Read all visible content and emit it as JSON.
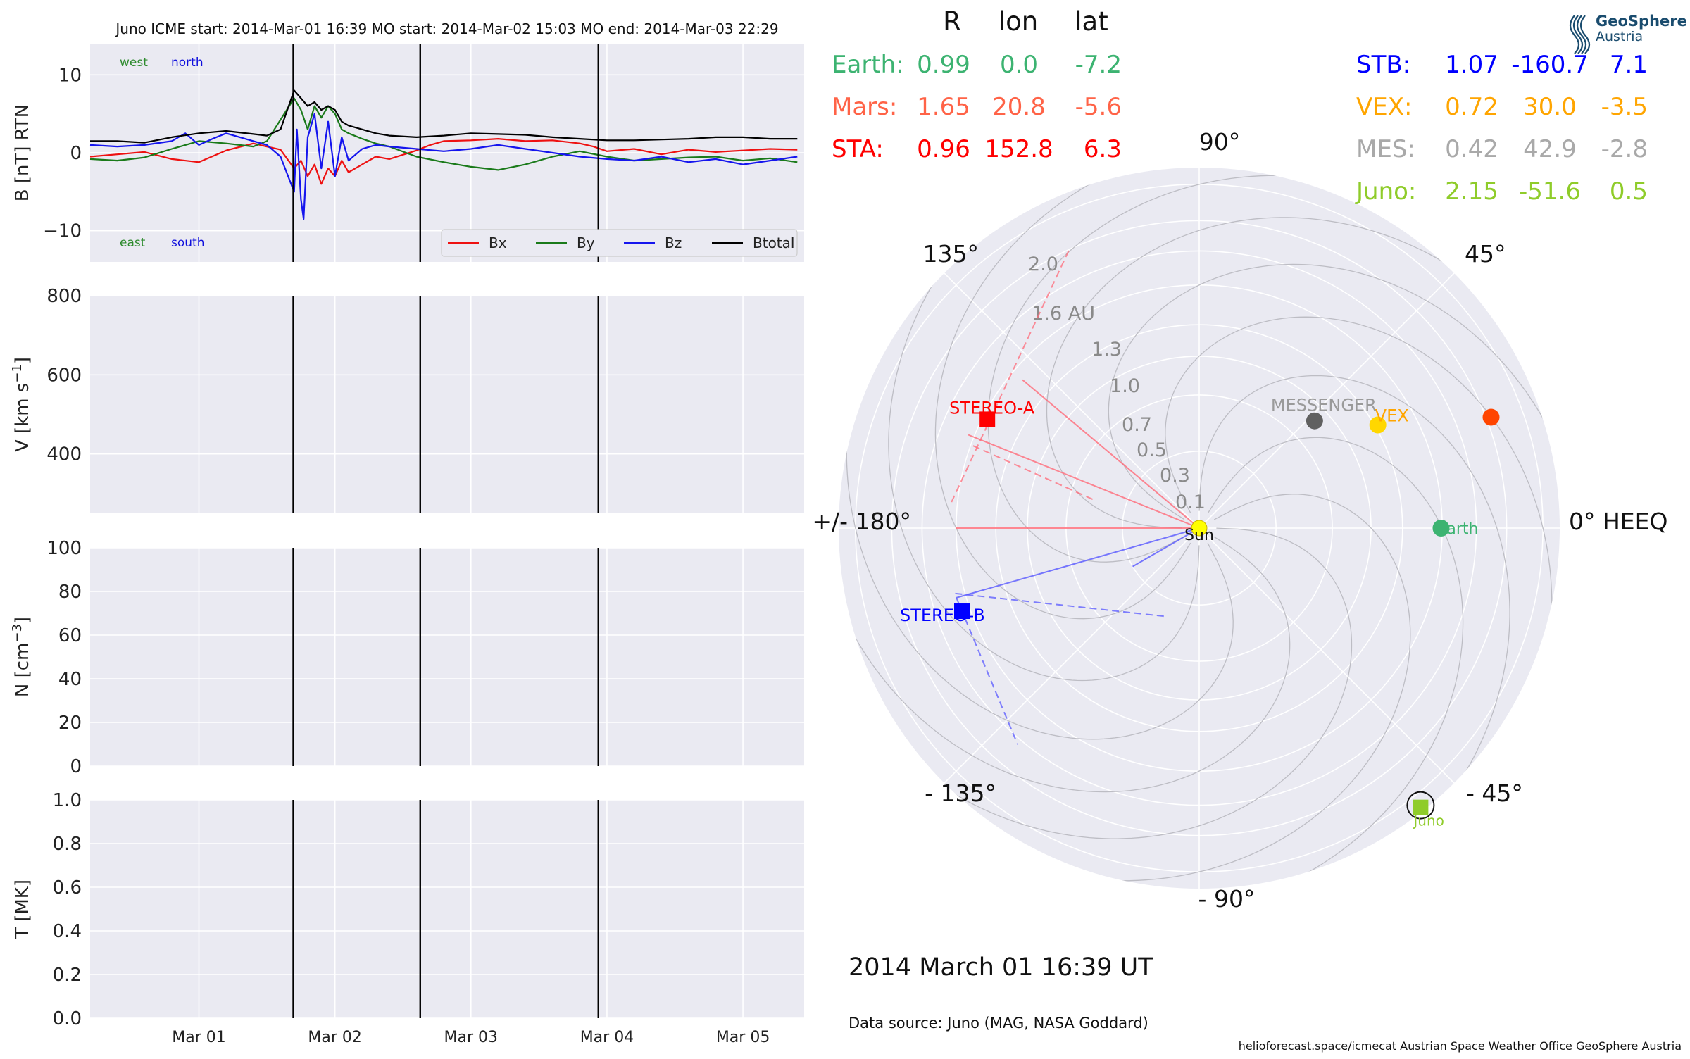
{
  "chart_data": [
    {
      "type": "line",
      "title": "Juno    ICME start: 2014-Mar-01 16:39   MO start: 2014-Mar-02 15:03   MO end: 2014-Mar-03 22:29",
      "ylabel": "B [nT] RTN",
      "ylim": [
        -14,
        14
      ],
      "yticks": [
        10,
        0,
        -10
      ],
      "ytick_labels": [
        "10",
        "0",
        "−10"
      ],
      "x_dates": [
        "2014-02-28T00:00",
        "2014-03-05T12:00"
      ],
      "vlines": [
        "2014-03-01T16:39",
        "2014-03-02T15:03",
        "2014-03-03T22:29"
      ],
      "annotations": [
        {
          "text": "west",
          "color": "#2e8b2e"
        },
        {
          "text": "north",
          "color": "#1010dd"
        },
        {
          "text": "east",
          "color": "#2e8b2e"
        },
        {
          "text": "south",
          "color": "#1010dd"
        }
      ],
      "legend": "lower-right",
      "series": [
        {
          "name": "Bx",
          "color": "#ee1111",
          "values": [
            [
              0.2,
              -0.5
            ],
            [
              0.4,
              -0.2
            ],
            [
              0.6,
              0.1
            ],
            [
              0.8,
              -0.8
            ],
            [
              1.0,
              -1.2
            ],
            [
              1.2,
              0.3
            ],
            [
              1.4,
              1.2
            ],
            [
              1.6,
              0.4
            ],
            [
              1.7,
              -2.0
            ],
            [
              1.75,
              -1.0
            ],
            [
              1.8,
              -3.0
            ],
            [
              1.85,
              -1.5
            ],
            [
              1.9,
              -4.0
            ],
            [
              1.95,
              -2.0
            ],
            [
              2.0,
              -3.0
            ],
            [
              2.05,
              -1.0
            ],
            [
              2.1,
              -2.5
            ],
            [
              2.2,
              -1.5
            ],
            [
              2.3,
              -0.5
            ],
            [
              2.4,
              -0.8
            ],
            [
              2.6,
              0.3
            ],
            [
              2.7,
              1.0
            ],
            [
              2.8,
              1.5
            ],
            [
              3.0,
              1.6
            ],
            [
              3.2,
              1.8
            ],
            [
              3.4,
              1.5
            ],
            [
              3.6,
              1.6
            ],
            [
              3.8,
              1.2
            ],
            [
              3.9,
              0.8
            ],
            [
              4.0,
              0.2
            ],
            [
              4.2,
              0.5
            ],
            [
              4.4,
              -0.2
            ],
            [
              4.6,
              0.4
            ],
            [
              4.8,
              0.1
            ],
            [
              5.0,
              0.3
            ],
            [
              5.2,
              0.5
            ],
            [
              5.4,
              0.4
            ]
          ]
        },
        {
          "name": "By",
          "color": "#1a7a1a",
          "values": [
            [
              0.2,
              -0.8
            ],
            [
              0.4,
              -1.0
            ],
            [
              0.6,
              -0.6
            ],
            [
              0.8,
              0.5
            ],
            [
              1.0,
              1.5
            ],
            [
              1.2,
              1.2
            ],
            [
              1.4,
              0.8
            ],
            [
              1.5,
              1.5
            ],
            [
              1.7,
              7.0
            ],
            [
              1.75,
              5.5
            ],
            [
              1.8,
              3.0
            ],
            [
              1.85,
              6.0
            ],
            [
              1.9,
              4.5
            ],
            [
              1.95,
              6.0
            ],
            [
              2.0,
              5.0
            ],
            [
              2.05,
              3.0
            ],
            [
              2.1,
              2.5
            ],
            [
              2.2,
              1.8
            ],
            [
              2.3,
              1.2
            ],
            [
              2.4,
              0.8
            ],
            [
              2.6,
              -0.5
            ],
            [
              2.8,
              -1.2
            ],
            [
              3.0,
              -1.8
            ],
            [
              3.2,
              -2.2
            ],
            [
              3.4,
              -1.5
            ],
            [
              3.6,
              -0.5
            ],
            [
              3.8,
              0.2
            ],
            [
              4.0,
              -0.5
            ],
            [
              4.2,
              -1.0
            ],
            [
              4.4,
              -0.8
            ],
            [
              4.6,
              -0.6
            ],
            [
              4.8,
              -0.5
            ],
            [
              5.0,
              -1.0
            ],
            [
              5.2,
              -0.7
            ],
            [
              5.4,
              -1.2
            ]
          ]
        },
        {
          "name": "Bz",
          "color": "#1515ee",
          "values": [
            [
              0.2,
              1.0
            ],
            [
              0.4,
              0.8
            ],
            [
              0.6,
              1.0
            ],
            [
              0.8,
              1.5
            ],
            [
              0.9,
              2.5
            ],
            [
              1.0,
              1.0
            ],
            [
              1.1,
              1.8
            ],
            [
              1.2,
              2.5
            ],
            [
              1.4,
              1.5
            ],
            [
              1.5,
              1.0
            ],
            [
              1.6,
              -0.5
            ],
            [
              1.7,
              -5.0
            ],
            [
              1.72,
              3.0
            ],
            [
              1.75,
              -6.0
            ],
            [
              1.77,
              -8.5
            ],
            [
              1.8,
              2.0
            ],
            [
              1.85,
              5.0
            ],
            [
              1.9,
              -2.0
            ],
            [
              1.95,
              4.0
            ],
            [
              2.0,
              -3.0
            ],
            [
              2.05,
              2.0
            ],
            [
              2.1,
              -1.0
            ],
            [
              2.2,
              0.5
            ],
            [
              2.3,
              1.0
            ],
            [
              2.4,
              0.8
            ],
            [
              2.6,
              0.5
            ],
            [
              2.8,
              0.2
            ],
            [
              3.0,
              0.5
            ],
            [
              3.2,
              1.0
            ],
            [
              3.4,
              0.5
            ],
            [
              3.6,
              0.0
            ],
            [
              3.8,
              -0.5
            ],
            [
              4.0,
              -0.8
            ],
            [
              4.2,
              -1.0
            ],
            [
              4.4,
              -0.5
            ],
            [
              4.6,
              -1.2
            ],
            [
              4.8,
              -0.8
            ],
            [
              5.0,
              -1.5
            ],
            [
              5.2,
              -1.0
            ],
            [
              5.4,
              -0.5
            ]
          ]
        },
        {
          "name": "Btotal",
          "color": "#000000",
          "values": [
            [
              0.2,
              1.5
            ],
            [
              0.4,
              1.5
            ],
            [
              0.6,
              1.3
            ],
            [
              0.8,
              2.0
            ],
            [
              1.0,
              2.5
            ],
            [
              1.2,
              2.8
            ],
            [
              1.4,
              2.4
            ],
            [
              1.5,
              2.2
            ],
            [
              1.6,
              3.0
            ],
            [
              1.7,
              8.0
            ],
            [
              1.75,
              7.0
            ],
            [
              1.8,
              6.0
            ],
            [
              1.85,
              6.5
            ],
            [
              1.9,
              5.5
            ],
            [
              1.95,
              6.0
            ],
            [
              2.0,
              5.5
            ],
            [
              2.05,
              4.0
            ],
            [
              2.1,
              3.5
            ],
            [
              2.2,
              3.0
            ],
            [
              2.3,
              2.5
            ],
            [
              2.4,
              2.2
            ],
            [
              2.6,
              2.0
            ],
            [
              2.8,
              2.2
            ],
            [
              3.0,
              2.5
            ],
            [
              3.2,
              2.4
            ],
            [
              3.4,
              2.3
            ],
            [
              3.6,
              2.0
            ],
            [
              3.8,
              1.8
            ],
            [
              4.0,
              1.6
            ],
            [
              4.2,
              1.6
            ],
            [
              4.4,
              1.7
            ],
            [
              4.6,
              1.8
            ],
            [
              4.8,
              2.0
            ],
            [
              5.0,
              2.0
            ],
            [
              5.2,
              1.8
            ],
            [
              5.4,
              1.8
            ]
          ]
        }
      ]
    },
    {
      "type": "line",
      "ylabel": "V [km s",
      "ylabel_sup": "−1",
      "ylabel_end": "]",
      "ylim": [
        250,
        800
      ],
      "yticks": [
        800,
        600,
        400
      ],
      "ytick_labels": [
        "800",
        "600",
        "400"
      ],
      "series": []
    },
    {
      "type": "line",
      "ylabel": "N [cm",
      "ylabel_sup": "−3",
      "ylabel_end": "]",
      "ylim": [
        0,
        100
      ],
      "yticks": [
        100,
        80,
        60,
        40,
        20,
        0
      ],
      "ytick_labels": [
        "100",
        "80",
        "60",
        "40",
        "20",
        "0"
      ],
      "series": []
    },
    {
      "type": "line",
      "ylabel": "T [MK]",
      "ylim": [
        0,
        1
      ],
      "yticks": [
        1.0,
        0.8,
        0.6,
        0.4,
        0.2,
        0.0
      ],
      "ytick_labels": [
        "1.0",
        "0.8",
        "0.6",
        "0.4",
        "0.2",
        "0.0"
      ],
      "xticks": [
        1.0,
        2.0,
        3.0,
        4.0,
        5.0
      ],
      "xtick_labels": [
        "Mar 01",
        "Mar 02",
        "Mar 03",
        "Mar 04",
        "Mar 05"
      ],
      "series": []
    },
    {
      "type": "scatter",
      "projection": "polar",
      "rlabels": [
        "0.1",
        "0.3",
        "0.5",
        "0.7",
        "1.0",
        "1.3",
        "1.6 AU",
        "2.0"
      ],
      "angle_labels": [
        "0° HEEQ",
        "45°",
        "90°",
        "135°",
        "+/- 180°",
        "- 135°",
        "- 90°",
        "- 45°"
      ],
      "bodies": [
        {
          "name": "Sun",
          "r": 0.0,
          "lon": 0.0,
          "color": "#ffff00",
          "marker": "circle"
        },
        {
          "name": "Earth",
          "r": 0.99,
          "lon": 0.0,
          "color": "#3cb371",
          "marker": "circle"
        },
        {
          "name": "",
          "r": 1.65,
          "lon": 20.8,
          "color": "#ff4500",
          "marker": "circle"
        },
        {
          "name": "VEX",
          "r": 0.72,
          "lon": 30.0,
          "color": "#ffd700",
          "marker": "circle"
        },
        {
          "name": "MESSENGER",
          "r": 0.42,
          "lon": 42.9,
          "color": "#606060",
          "marker": "circle"
        },
        {
          "name": "STEREO-A",
          "r": 0.96,
          "lon": 152.8,
          "color": "#ff0000",
          "marker": "square"
        },
        {
          "name": "STEREO-B",
          "r": 1.07,
          "lon": -160.7,
          "color": "#0000ff",
          "marker": "square"
        },
        {
          "name": "Juno",
          "r": 2.15,
          "lon": -51.6,
          "color": "#8fcc2a",
          "marker": "square"
        }
      ],
      "icme_fronts": [
        {
          "color": "#ff6a78",
          "lines": [
            [
              [
                0,
                0
              ],
              [
                180,
                1.0
              ]
            ],
            [
              [
                0,
                0
              ],
              [
                158,
                1.05
              ]
            ],
            [
              [
                0,
                0
              ],
              [
                140,
                0.9
              ]
            ]
          ],
          "dashed": [
            [
              [
                174,
                1.05
              ],
              [
                115,
                1.6
              ]
            ],
            [
              [
                160,
                0.98
              ],
              [
                165,
                0.2
              ]
            ]
          ]
        },
        {
          "color": "#5858ff",
          "lines": [
            [
              [
                0,
                0
              ],
              [
                -164,
                1.08
              ]
            ],
            [
              [
                0,
                0
              ],
              [
                -150,
                0.1
              ]
            ]
          ],
          "dashed": [
            [
              [
                -164,
                1.08
              ],
              [
                -130,
                1.35
              ]
            ],
            [
              [
                -165,
                1.08
              ],
              [
                -110,
                0.15
              ]
            ]
          ]
        }
      ]
    }
  ],
  "positions_table": {
    "header": [
      "R",
      "lon",
      "lat"
    ],
    "left": [
      {
        "label": "Earth:",
        "r": "0.99",
        "lon": "0.0",
        "lat": "-7.2",
        "color": "#3cb371"
      },
      {
        "label": "Mars:",
        "r": "1.65",
        "lon": "20.8",
        "lat": "-5.6",
        "color": "#ff6347"
      },
      {
        "label": "STA:",
        "r": "0.96",
        "lon": "152.8",
        "lat": "6.3",
        "color": "#ff0000"
      }
    ],
    "right": [
      {
        "label": "STB:",
        "r": "1.07",
        "lon": "-160.7",
        "lat": "7.1",
        "color": "#0000ff"
      },
      {
        "label": "VEX:",
        "r": "0.72",
        "lon": "30.0",
        "lat": "-3.5",
        "color": "#ffa500"
      },
      {
        "label": "MES:",
        "r": "0.42",
        "lon": "42.9",
        "lat": "-2.8",
        "color": "#a9a9a9"
      },
      {
        "label": "Juno:",
        "r": "2.15",
        "lon": "-51.6",
        "lat": "0.5",
        "color": "#8fcc2a"
      }
    ]
  },
  "timestamp": "2014 March 01  16:39 UT",
  "data_source": "Data source: Juno (MAG, NASA Goddard)",
  "footer": "helioforecast.space/icmecat   Austrian Space Weather Office   GeoSphere Austria",
  "logo": {
    "line1": "GeoSphere",
    "line2": "Austria",
    "color": "#1a4c6e"
  }
}
